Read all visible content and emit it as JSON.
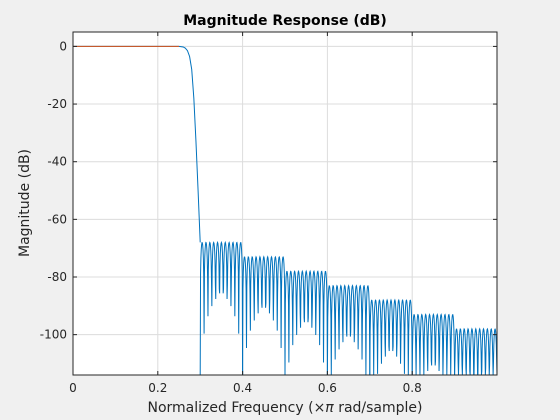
{
  "chart_data": {
    "type": "line",
    "title": "Magnitude Response (dB)",
    "xlabel_parts": [
      "Normalized Frequency  (",
      "×π",
      " rad/sample)"
    ],
    "ylabel": "Magnitude (dB)",
    "xlim": [
      0,
      1
    ],
    "ylim": [
      -114,
      5
    ],
    "x_ticks": [
      0,
      0.2,
      0.4,
      0.6,
      0.8
    ],
    "x_tick_labels": [
      "0",
      "0.2",
      "0.4",
      "0.6",
      "0.8"
    ],
    "y_ticks": [
      0,
      -20,
      -40,
      -60,
      -80,
      -100
    ],
    "y_tick_labels": [
      "0",
      "-20",
      "-40",
      "-60",
      "-80",
      "-100"
    ],
    "grid": true,
    "line_color": "#0072bd",
    "passband_color": "#d95319",
    "axes_background": "#ffffff",
    "figure_background": "#f0f0f0",
    "series": [
      {
        "passband_edge": 0.25,
        "stopband_edge": 0.3,
        "x": [
          0,
          0.25,
          0.26,
          0.265,
          0.27,
          0.275,
          0.28,
          0.285,
          0.29,
          0.295,
          0.3
        ],
        "y": [
          0,
          0,
          -0.2,
          -0.6,
          -1.5,
          -3.5,
          -8,
          -18,
          -33,
          -50,
          -68
        ],
        "stopband_lobes": [
          {
            "x": [
              0.3,
              0.4
            ],
            "peak_db": -68,
            "min_db": -114
          },
          {
            "x": [
              0.4,
              0.5
            ],
            "peak_db": -73,
            "min_db": -114
          },
          {
            "x": [
              0.5,
              0.6
            ],
            "peak_db": -78,
            "min_db": -114
          },
          {
            "x": [
              0.6,
              0.7
            ],
            "peak_db": -83,
            "min_db": -114
          },
          {
            "x": [
              0.7,
              0.8
            ],
            "peak_db": -88,
            "min_db": -114
          },
          {
            "x": [
              0.8,
              0.9
            ],
            "peak_db": -93,
            "min_db": -114
          },
          {
            "x": [
              0.9,
              1.0
            ],
            "peak_db": -98,
            "min_db": -114
          }
        ]
      }
    ]
  }
}
